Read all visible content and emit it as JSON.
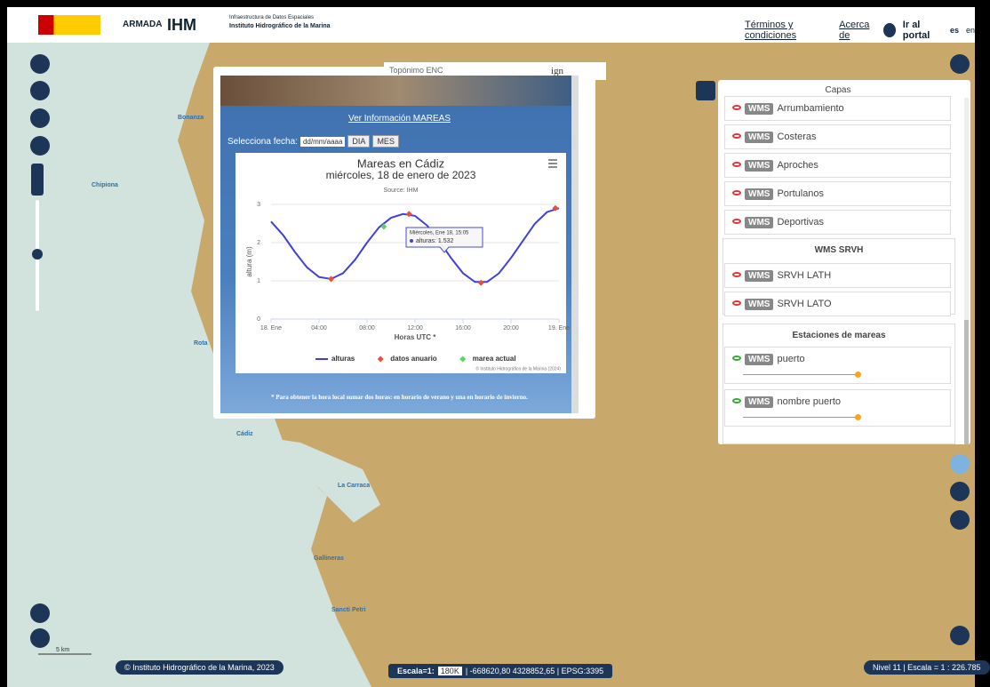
{
  "header": {
    "logo_armada": "ARMADA",
    "logo_ihm": "IHM",
    "logo_ide_line1": "Infraestructura de Datos Espaciales",
    "logo_ide_line2": "Instituto Hidrográfico de la Marina",
    "links": [
      "Términos y condiciones",
      "Acerca de",
      "Ir al portal"
    ],
    "languages": [
      "es",
      "en"
    ]
  },
  "map": {
    "places": [
      "Bonanza",
      "Chipiona",
      "Rota",
      "Cádiz",
      "La Carraca",
      "Gallineras",
      "Sancti Petri"
    ],
    "scale_label": "5 km"
  },
  "popup": {
    "title": "Topónimo ENC",
    "ign": "ign",
    "link": "Ver Información MAREAS",
    "date_label": "Selecciona fecha:",
    "date_input": "dd/mm/aaaa",
    "buttons": [
      "DIA",
      "MES"
    ],
    "note": "* Para obtener la hora local sumar dos horas: en horario de verano y una en horario de invierno."
  },
  "chart_data": {
    "type": "line",
    "title": "Mareas en Cádiz",
    "subtitle": "miércoles, 18 de enero de 2023",
    "source": "Source: IHM",
    "x_label": "Horas UTC *",
    "y_label": "altura (m)",
    "credit": "© Instituto Hidrográfico de la Marina (2024)",
    "x": [
      0,
      1,
      2,
      3,
      4,
      5,
      6,
      7,
      8,
      9,
      10,
      11,
      12,
      13,
      14,
      15,
      16,
      17,
      18,
      19,
      20,
      21,
      22,
      23,
      24
    ],
    "xlim": [
      0,
      24
    ],
    "xticks": [
      {
        "value": 0,
        "label": "18. Ene"
      },
      {
        "value": 4,
        "label": "04:00"
      },
      {
        "value": 8,
        "label": "08:00"
      },
      {
        "value": 12,
        "label": "12:00"
      },
      {
        "value": 16,
        "label": "16:00"
      },
      {
        "value": 20,
        "label": "20:00"
      },
      {
        "value": 24,
        "label": "19. Ene"
      }
    ],
    "ylim": [
      0,
      3
    ],
    "yticks": [
      0,
      1,
      2,
      3
    ],
    "series": [
      {
        "name": "alturas",
        "color": "#4040d8",
        "values": [
          2.55,
          2.2,
          1.75,
          1.35,
          1.1,
          1.05,
          1.2,
          1.55,
          2.0,
          2.4,
          2.65,
          2.75,
          2.7,
          2.45,
          2.05,
          1.6,
          1.2,
          0.97,
          0.97,
          1.2,
          1.6,
          2.05,
          2.5,
          2.8,
          2.9
        ]
      },
      {
        "name": "datos anuario",
        "color": "#e8503a",
        "x": [
          5,
          11.5,
          17.5,
          23.7
        ],
        "values": [
          1.05,
          2.75,
          0.95,
          2.9
        ]
      },
      {
        "name": "marea actual",
        "color": "#5fd35f",
        "x": [
          9.4
        ],
        "values": [
          2.42
        ]
      }
    ],
    "tooltip": {
      "title": "Miércoles, Ene 18, 15:05",
      "text": "alturas: 1.532"
    }
  },
  "layers": {
    "title": "Capas",
    "group1": [
      "Arrumbamiento",
      "Costeras",
      "Aproches",
      "Portulanos",
      "Deportivas"
    ],
    "badge": "WMS",
    "group2_title": "WMS SRVH",
    "group2": [
      "SRVH LATH",
      "SRVH LATO"
    ],
    "group3_title": "Estaciones de mareas",
    "group3": [
      "puerto",
      "nombre puerto"
    ]
  },
  "footer": {
    "copyright": "© Instituto Hidrográfico de la Marina, 2023",
    "scale_prefix": "Escala=1:",
    "scale_value": "180K",
    "coords": "| -668620,80 4328852,65 | EPSG:3395",
    "level": "Nivel 11 | Escala = 1 : 226.785"
  }
}
